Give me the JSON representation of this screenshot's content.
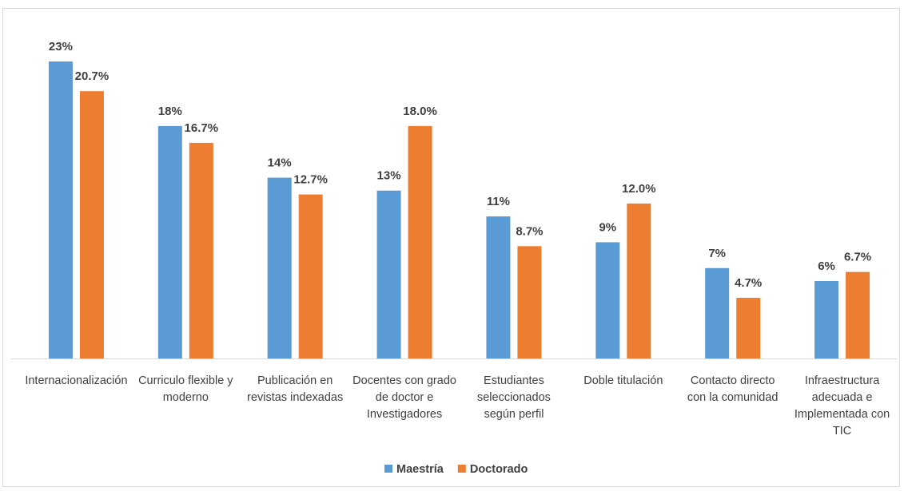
{
  "chart_data": {
    "type": "bar",
    "categories": [
      [
        "Internacionalización"
      ],
      [
        "Curriculo flexible y",
        "moderno"
      ],
      [
        "Publicación en",
        "revistas indexadas"
      ],
      [
        "Docentes con grado",
        "de doctor e",
        "Investigadores"
      ],
      [
        "Estudiantes",
        "seleccionados",
        "según perfil"
      ],
      [
        "Doble titulación"
      ],
      [
        "Contacto directo",
        "con la comunidad"
      ],
      [
        "Infraestructura",
        "adecuada e",
        "Implementada con",
        "TIC"
      ]
    ],
    "series": [
      {
        "name": "Maestría",
        "color": "#5b9bd5",
        "values": [
          23,
          18,
          14,
          13,
          11,
          9,
          7,
          6
        ],
        "labels": [
          "23%",
          "18%",
          "14%",
          "13%",
          "11%",
          "9%",
          "7%",
          "6%"
        ]
      },
      {
        "name": "Doctorado",
        "color": "#ed7d31",
        "values": [
          20.7,
          16.7,
          12.7,
          18.0,
          8.7,
          12.0,
          4.7,
          6.7
        ],
        "labels": [
          "20.7%",
          "16.7%",
          "12.7%",
          "18.0%",
          "8.7%",
          "12.0%",
          "4.7%",
          "6.7%"
        ]
      }
    ],
    "ylim": [
      0,
      23
    ],
    "grid": false,
    "legend_position": "bottom"
  }
}
